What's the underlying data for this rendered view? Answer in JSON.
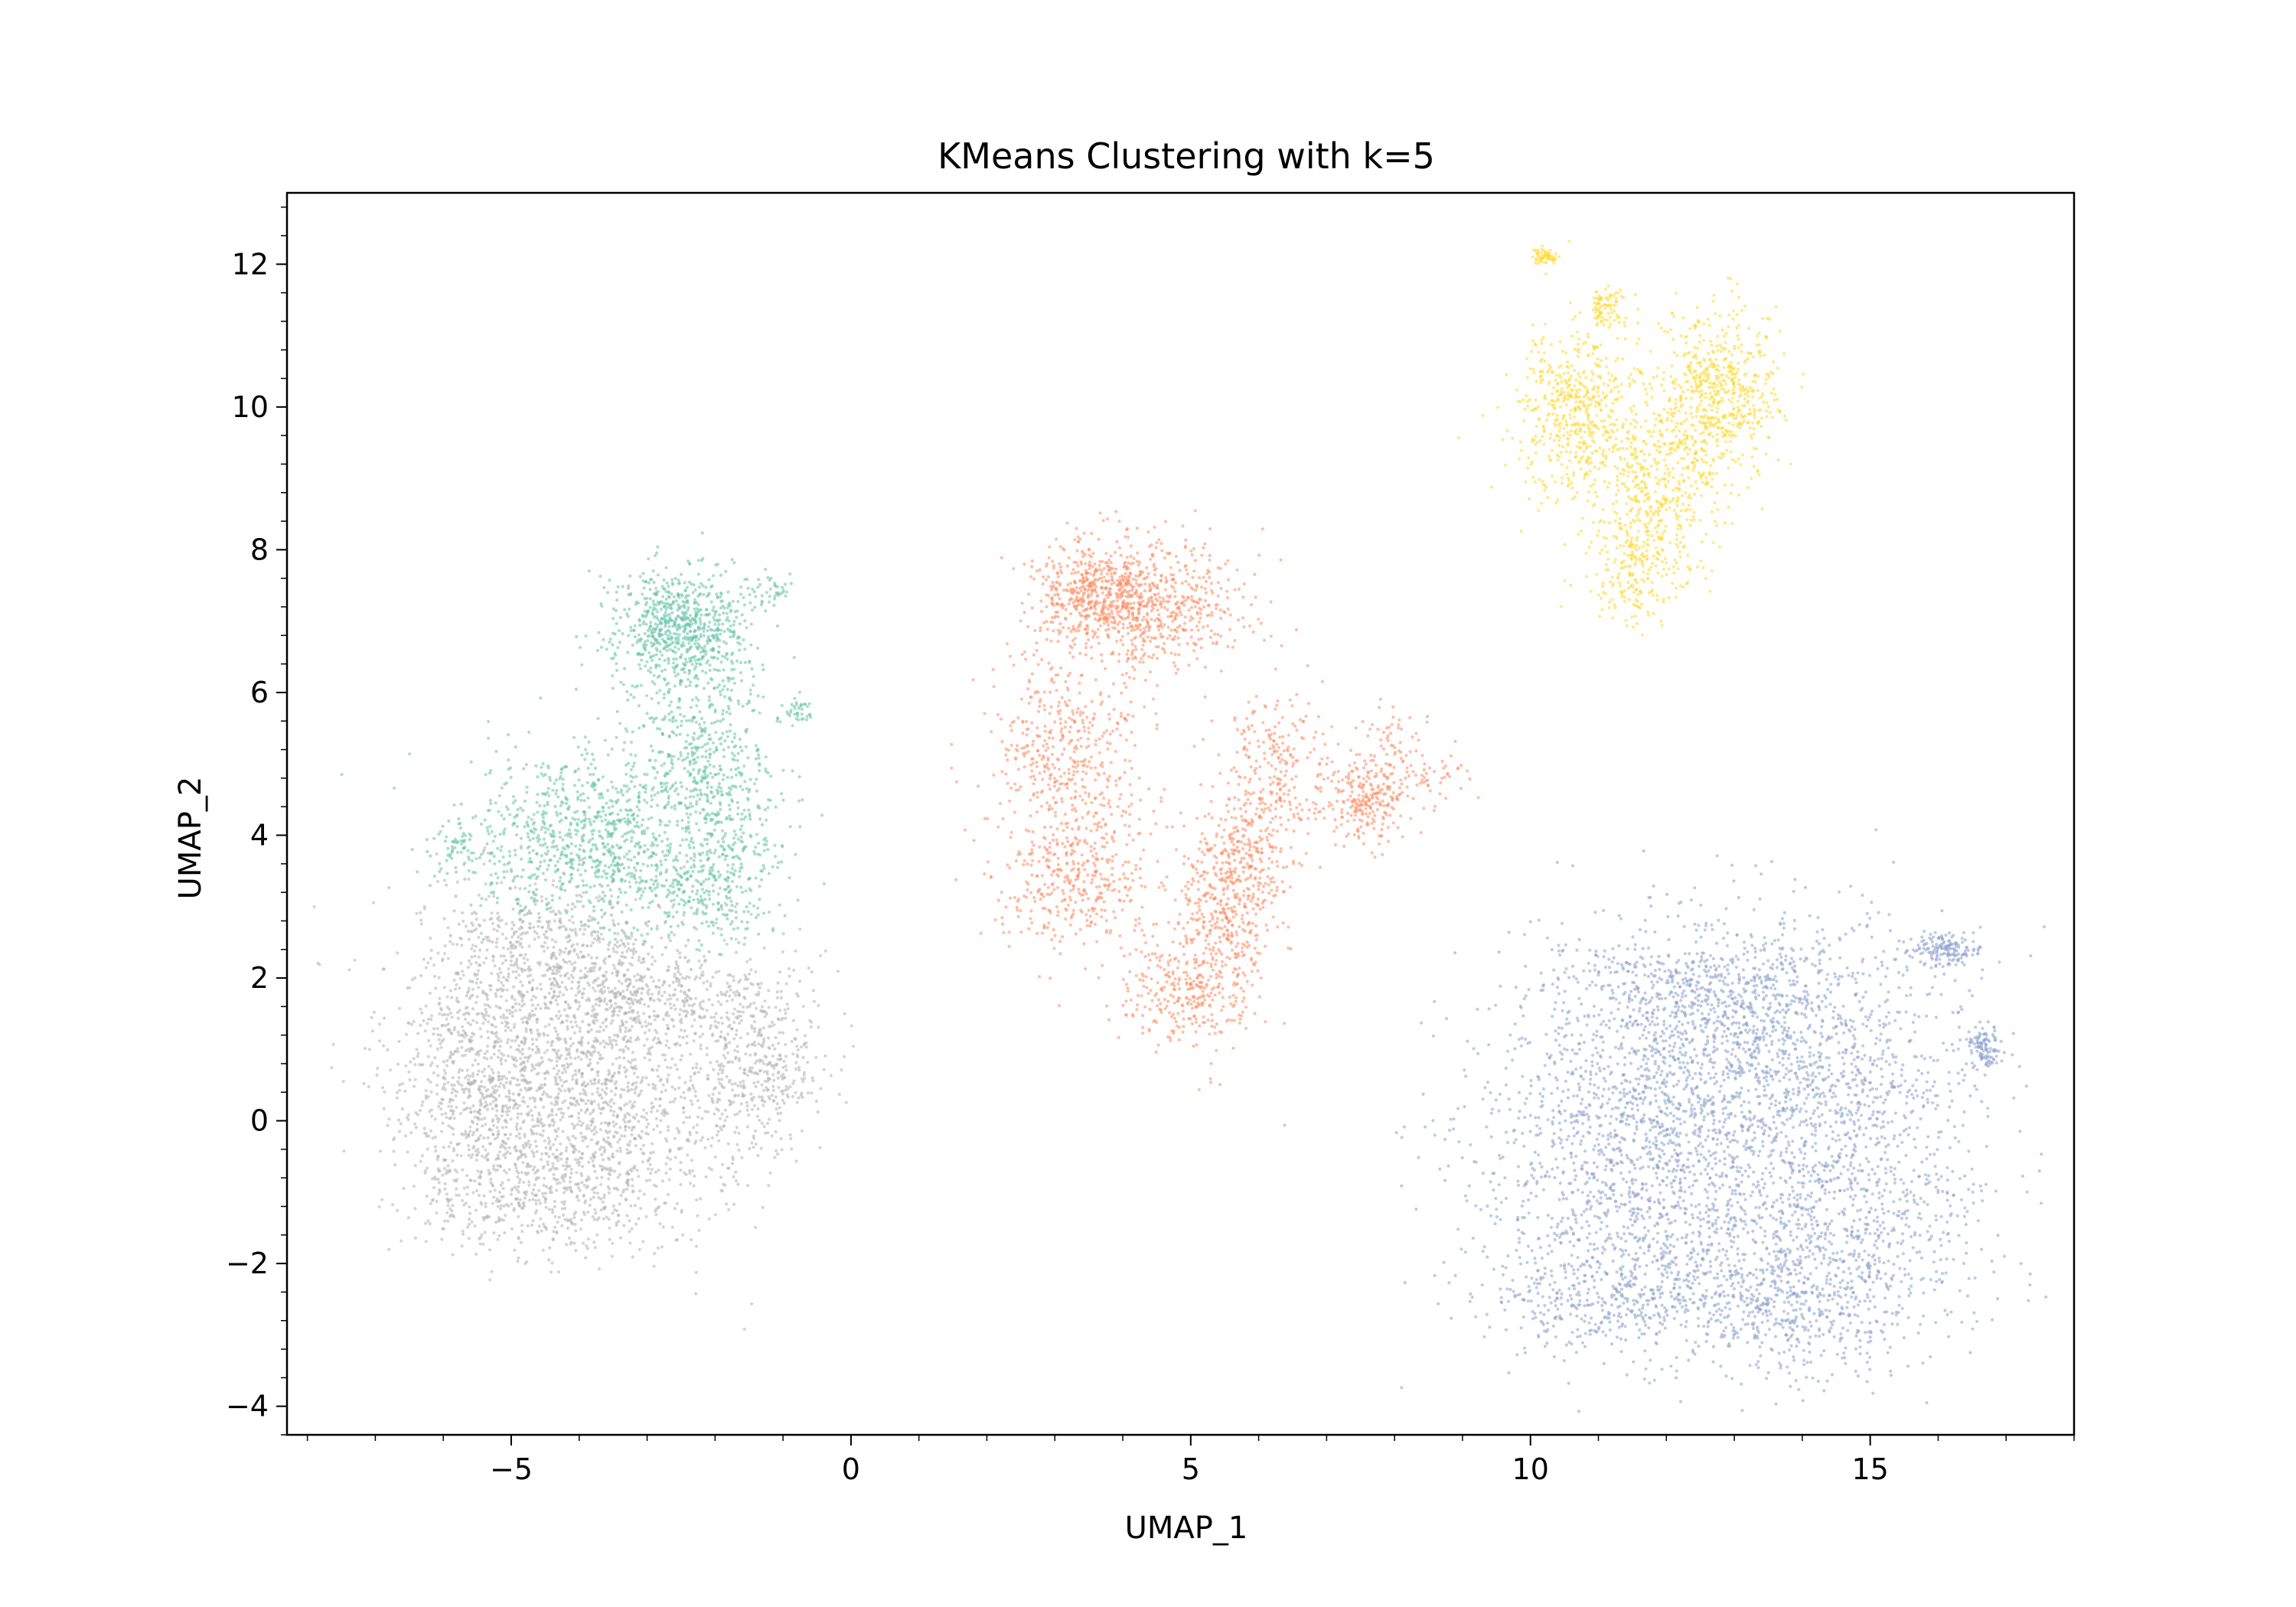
{
  "chart_data": {
    "type": "scatter",
    "title": "KMeans Clustering with k=5",
    "xlabel": "UMAP_1",
    "ylabel": "UMAP_2",
    "xlim": [
      -8.3,
      18.0
    ],
    "ylim": [
      -4.4,
      13.0
    ],
    "xticks": [
      -5,
      0,
      5,
      10,
      15
    ],
    "xtick_labels": [
      "−5",
      "0",
      "5",
      "10",
      "15"
    ],
    "yticks": [
      -4,
      -2,
      0,
      2,
      4,
      6,
      8,
      10,
      12
    ],
    "ytick_labels": [
      "−4",
      "−2",
      "0",
      "2",
      "4",
      "6",
      "8",
      "10",
      "12"
    ],
    "x_minor_step": 1,
    "y_minor_step": 0.4,
    "grid": false,
    "legend": "none",
    "series": [
      {
        "color": "#66c2a5",
        "centers": [
          [
            -3.7,
            3.9
          ],
          [
            -2.5,
            6.9
          ],
          [
            -2.3,
            5.3
          ],
          [
            -1.8,
            4.3
          ],
          [
            -2.0,
            3.2
          ],
          [
            -5.8,
            3.8
          ]
        ],
        "spreads": [
          [
            0.95,
            0.65
          ],
          [
            0.5,
            0.45
          ],
          [
            0.45,
            0.55
          ],
          [
            0.45,
            0.55
          ],
          [
            0.55,
            0.35
          ],
          [
            0.2,
            0.15
          ]
        ],
        "weights": [
          0.4,
          0.3,
          0.12,
          0.08,
          0.08,
          0.02
        ],
        "extras": [
          [
            -0.8,
            5.7,
            0.15,
            0.08,
            40
          ],
          [
            -1.2,
            7.4,
            0.25,
            0.12,
            40
          ]
        ],
        "extras_note": "",
        "count": 2600
      },
      {
        "color": "#fc8d62",
        "centers": [
          [
            3.6,
            7.4
          ],
          [
            4.5,
            7.2
          ],
          [
            3.2,
            5.2
          ],
          [
            3.3,
            3.4
          ],
          [
            5.4,
            2.7
          ],
          [
            4.8,
            1.8
          ],
          [
            5.8,
            3.6
          ],
          [
            6.2,
            4.9
          ],
          [
            7.6,
            4.5
          ]
        ],
        "spreads": [
          [
            0.45,
            0.35
          ],
          [
            0.65,
            0.45
          ],
          [
            0.55,
            0.7
          ],
          [
            0.6,
            0.5
          ],
          [
            0.35,
            0.75
          ],
          [
            0.45,
            0.35
          ],
          [
            0.35,
            0.5
          ],
          [
            0.4,
            0.55
          ],
          [
            0.35,
            0.3
          ]
        ],
        "weights": [
          0.15,
          0.17,
          0.14,
          0.12,
          0.12,
          0.07,
          0.07,
          0.08,
          0.08
        ],
        "extras": [
          [
            8.0,
            5.3,
            0.25,
            0.35,
            60
          ],
          [
            8.6,
            4.8,
            0.25,
            0.2,
            40
          ]
        ],
        "count": 3200
      },
      {
        "color": "#8da0cb",
        "centers": [
          [
            11.8,
            0.5
          ],
          [
            11.5,
            -1.2
          ],
          [
            14.0,
            1.0
          ],
          [
            14.6,
            -1.2
          ],
          [
            13.8,
            -2.5
          ],
          [
            11.2,
            -2.5
          ],
          [
            12.5,
            1.9
          ],
          [
            16.1,
            2.4
          ],
          [
            16.7,
            1.0
          ]
        ],
        "spreads": [
          [
            1.25,
            1.05
          ],
          [
            1.2,
            1.0
          ],
          [
            1.25,
            0.9
          ],
          [
            1.1,
            1.0
          ],
          [
            0.9,
            0.55
          ],
          [
            0.9,
            0.35
          ],
          [
            1.1,
            0.45
          ],
          [
            0.25,
            0.12
          ],
          [
            0.1,
            0.15
          ]
        ],
        "weights": [
          0.2,
          0.18,
          0.17,
          0.17,
          0.09,
          0.06,
          0.08,
          0.03,
          0.02
        ],
        "count": 5200
      },
      {
        "color": "#ffd92f",
        "centers": [
          [
            10.7,
            9.9
          ],
          [
            12.8,
            10.3
          ],
          [
            12.0,
            9.2
          ],
          [
            11.7,
            8.2
          ],
          [
            11.5,
            7.5
          ],
          [
            11.1,
            11.4
          ],
          [
            10.2,
            12.1
          ]
        ],
        "spreads": [
          [
            0.45,
            0.6
          ],
          [
            0.42,
            0.55
          ],
          [
            0.55,
            0.6
          ],
          [
            0.45,
            0.45
          ],
          [
            0.25,
            0.3
          ],
          [
            0.15,
            0.15
          ],
          [
            0.1,
            0.06
          ]
        ],
        "weights": [
          0.28,
          0.28,
          0.2,
          0.12,
          0.05,
          0.04,
          0.03
        ],
        "count": 1900
      },
      {
        "color": "#b3b3b3",
        "centers": [
          [
            -4.3,
            1.2
          ],
          [
            -3.8,
            -0.3
          ],
          [
            -5.6,
            0.6
          ],
          [
            -1.4,
            0.8
          ],
          [
            -3.0,
            1.8
          ],
          [
            -4.6,
            2.6
          ],
          [
            -4.8,
            -1.0
          ]
        ],
        "spreads": [
          [
            1.2,
            0.95
          ],
          [
            1.1,
            0.8
          ],
          [
            0.55,
            0.9
          ],
          [
            0.55,
            0.7
          ],
          [
            0.9,
            0.35
          ],
          [
            0.7,
            0.5
          ],
          [
            0.8,
            0.4
          ]
        ],
        "weights": [
          0.28,
          0.22,
          0.12,
          0.12,
          0.1,
          0.08,
          0.08
        ],
        "count": 3800
      }
    ]
  }
}
